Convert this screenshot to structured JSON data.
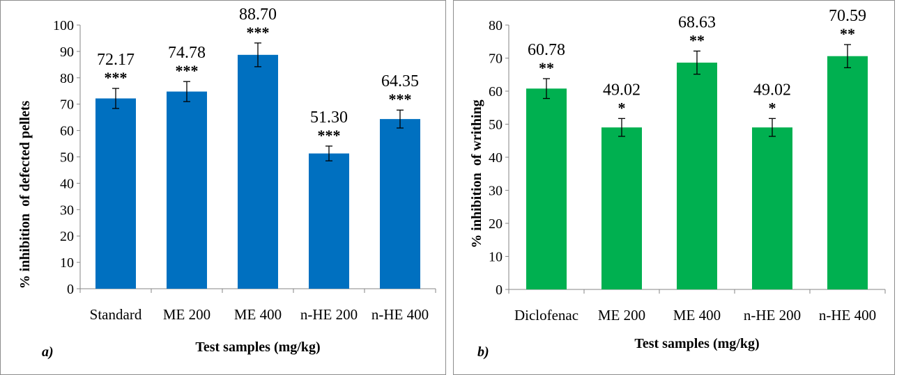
{
  "chart_data": [
    {
      "type": "bar",
      "panel_label": "a)",
      "categories": [
        "Standard",
        "ME 200",
        "ME 400",
        "n-HE 200",
        "n-HE 400"
      ],
      "values": [
        72.17,
        74.78,
        88.7,
        51.3,
        64.35
      ],
      "value_labels": [
        "72.17",
        "74.78",
        "88.70",
        "51.30",
        "64.35"
      ],
      "errors": [
        3.8,
        3.8,
        4.5,
        2.8,
        3.4
      ],
      "significance": [
        "***",
        "***",
        "***",
        "***",
        "***"
      ],
      "xlabel": "Test samples (mg/kg)",
      "ylabel": "% inhibition  of defected pellets",
      "ylim": [
        0,
        100
      ],
      "yticks": [
        0,
        10,
        20,
        30,
        40,
        50,
        60,
        70,
        80,
        90,
        100
      ],
      "grid": false,
      "color": "#0070C0"
    },
    {
      "type": "bar",
      "panel_label": "b)",
      "categories": [
        "Diclofenac",
        "ME 200",
        "ME 400",
        "n-HE 200",
        "n-HE 400"
      ],
      "values": [
        60.78,
        49.02,
        68.63,
        49.02,
        70.59
      ],
      "value_labels": [
        "60.78",
        "49.02",
        "68.63",
        "49.02",
        "70.59"
      ],
      "errors": [
        3.0,
        2.7,
        3.5,
        2.7,
        3.5
      ],
      "significance": [
        "**",
        "*",
        "**",
        "*",
        "**"
      ],
      "xlabel": "Test samples (mg/kg)",
      "ylabel": "% inhibition  of writhing",
      "ylim": [
        0,
        80
      ],
      "yticks": [
        0,
        10,
        20,
        30,
        40,
        50,
        60,
        70,
        80
      ],
      "grid": false,
      "color": "#00B050"
    }
  ]
}
